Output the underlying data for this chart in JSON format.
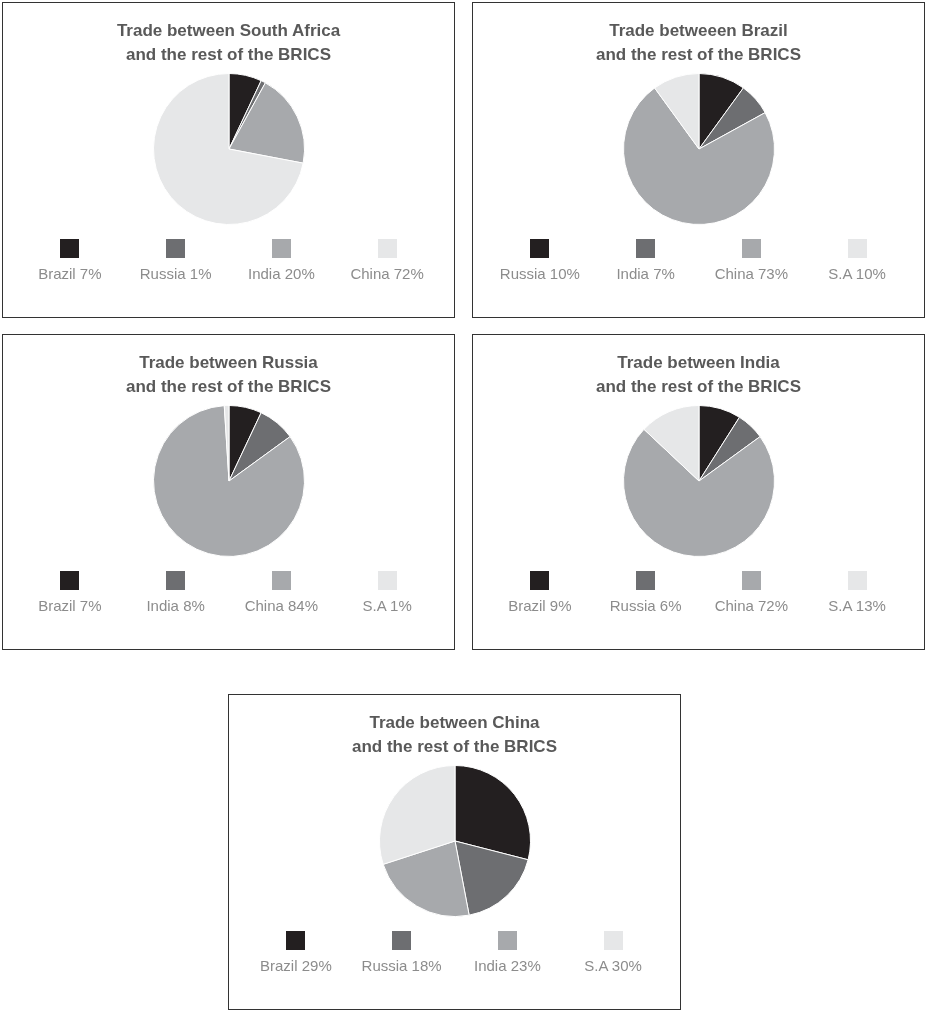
{
  "chart_data": [
    {
      "type": "pie",
      "title": "Trade between South Africa\nand the rest of the BRICS",
      "categories": [
        "Brazil 7%",
        "Russia 1%",
        "India 20%",
        "China 72%"
      ],
      "values": [
        7,
        1,
        20,
        72
      ],
      "colors": [
        "#231f20",
        "#6d6e71",
        "#a7a9ac",
        "#e6e7e8"
      ],
      "legend": "bottom"
    },
    {
      "type": "pie",
      "title": "Trade betweeen Brazil\nand the rest of the BRICS",
      "categories": [
        "Russia 10%",
        "India 7%",
        "China 73%",
        "S.A 10%"
      ],
      "values": [
        10,
        7,
        73,
        10
      ],
      "colors": [
        "#231f20",
        "#6d6e71",
        "#a7a9ac",
        "#e6e7e8"
      ],
      "legend": "bottom"
    },
    {
      "type": "pie",
      "title": "Trade between Russia\nand the rest of the BRICS",
      "categories": [
        "Brazil 7%",
        "India 8%",
        "China 84%",
        "S.A 1%"
      ],
      "values": [
        7,
        8,
        84,
        1
      ],
      "colors": [
        "#231f20",
        "#6d6e71",
        "#a7a9ac",
        "#e6e7e8"
      ],
      "legend": "bottom"
    },
    {
      "type": "pie",
      "title": "Trade between India\nand the rest of the BRICS",
      "categories": [
        "Brazil 9%",
        "Russia 6%",
        "China 72%",
        "S.A 13%"
      ],
      "values": [
        9,
        6,
        72,
        13
      ],
      "colors": [
        "#231f20",
        "#6d6e71",
        "#a7a9ac",
        "#e6e7e8"
      ],
      "legend": "bottom"
    },
    {
      "type": "pie",
      "title": "Trade between China\nand the rest of the BRICS",
      "categories": [
        "Brazil 29%",
        "Russia 18%",
        "India 23%",
        "S.A 30%"
      ],
      "values": [
        29,
        18,
        23,
        30
      ],
      "colors": [
        "#231f20",
        "#6d6e71",
        "#a7a9ac",
        "#e6e7e8"
      ],
      "legend": "bottom"
    }
  ]
}
